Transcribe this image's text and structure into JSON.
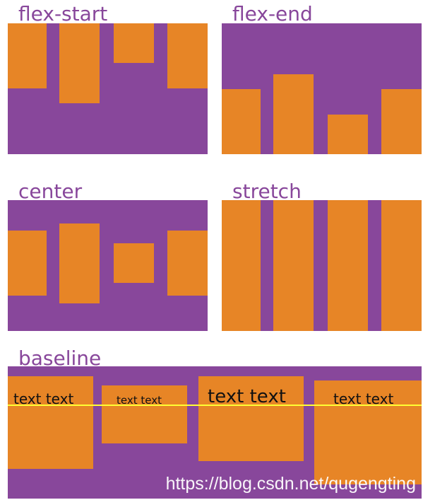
{
  "colors": {
    "container": "#88479b",
    "item": "#e78526",
    "baseline_line": "#ffff33",
    "title": "#88479b"
  },
  "panels": {
    "flex_start": {
      "title": "flex-start"
    },
    "flex_end": {
      "title": "flex-end"
    },
    "center": {
      "title": "center"
    },
    "stretch": {
      "title": "stretch"
    },
    "baseline": {
      "title": "baseline",
      "items": [
        {
          "text": "text text"
        },
        {
          "text": "text text"
        },
        {
          "text": "text text"
        },
        {
          "text": "text text"
        }
      ]
    }
  },
  "watermark": "https://blog.csdn.net/qugengting"
}
